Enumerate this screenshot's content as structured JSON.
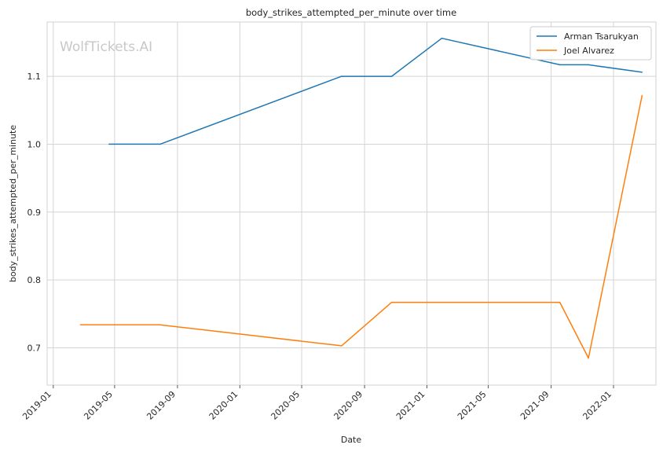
{
  "chart_data": {
    "type": "line",
    "title": "body_strikes_attempted_per_minute over time",
    "xlabel": "Date",
    "ylabel": "body_strikes_attempted_per_minute",
    "watermark": "WolfTickets.AI",
    "x_range": [
      "2018-12-20",
      "2022-03-25"
    ],
    "ylim": [
      0.645,
      1.18
    ],
    "x_ticks": [
      "2019-01",
      "2019-05",
      "2019-09",
      "2020-01",
      "2020-05",
      "2020-09",
      "2021-01",
      "2021-05",
      "2021-09",
      "2022-01"
    ],
    "y_ticks": [
      0.7,
      0.8,
      0.9,
      1.0,
      1.1
    ],
    "y_tick_labels": [
      "0.7",
      "0.8",
      "0.9",
      "1.0",
      "1.1"
    ],
    "grid": true,
    "legend_position": "top-right",
    "series": [
      {
        "name": "Arman Tsarukyan",
        "color": "#1f77b4",
        "x": [
          "2019-04-20",
          "2019-07-29",
          "2020-07-18",
          "2020-10-24",
          "2021-01-30",
          "2021-09-18",
          "2021-11-13",
          "2022-02-26"
        ],
        "y": [
          1.0,
          1.0,
          1.1,
          1.1,
          1.156,
          1.117,
          1.117,
          1.106
        ]
      },
      {
        "name": "Joel Alvarez",
        "color": "#ff7f0e",
        "x": [
          "2019-02-23",
          "2019-07-27",
          "2020-07-18",
          "2020-10-24",
          "2021-01-30",
          "2021-09-18",
          "2021-11-13",
          "2022-02-26"
        ],
        "y": [
          0.734,
          0.734,
          0.703,
          0.767,
          0.767,
          0.767,
          0.685,
          1.072
        ]
      }
    ]
  }
}
